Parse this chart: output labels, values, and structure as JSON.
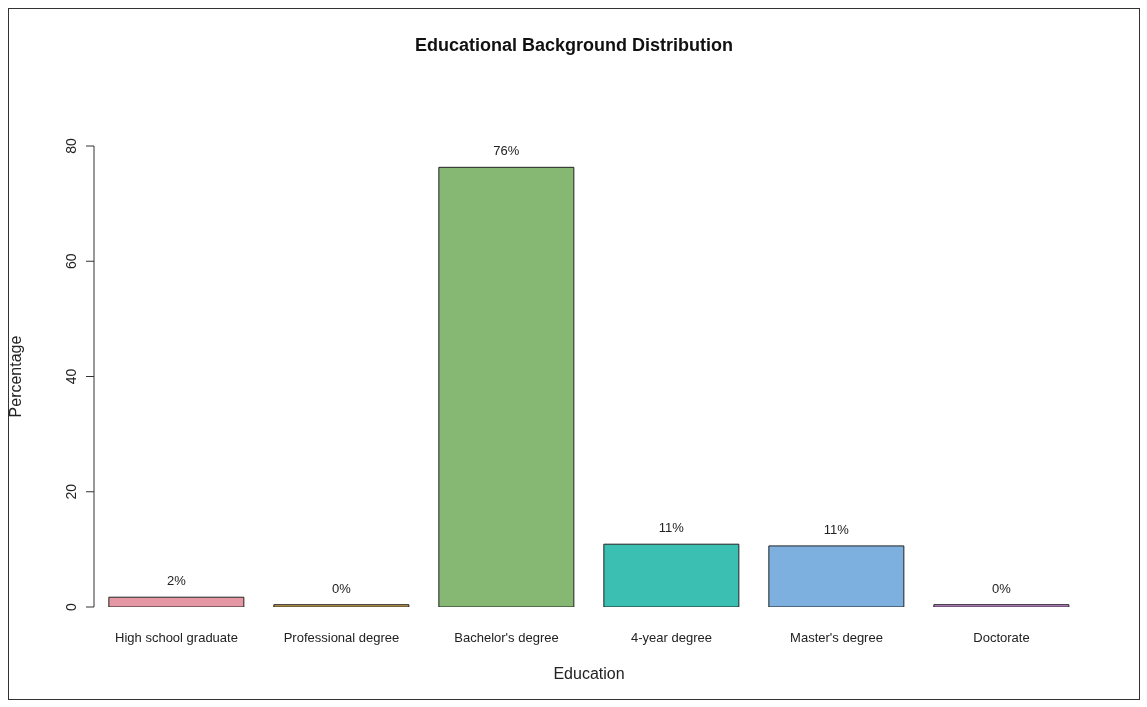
{
  "chart_data": {
    "type": "bar",
    "title": "Educational Background Distribution",
    "xlabel": "Education",
    "ylabel": "Percentage",
    "categories": [
      "High school graduate",
      "Professional degree",
      "Bachelor's degree",
      "4-year degree",
      "Master's degree",
      "Doctorate"
    ],
    "values": [
      1.7,
      0.4,
      76.3,
      10.9,
      10.6,
      0.4
    ],
    "colors": [
      "#e597a3",
      "#c9a24e",
      "#86b874",
      "#3bbfb2",
      "#7db0de",
      "#c98ad8"
    ],
    "value_labels": [
      "2%",
      "0%",
      "76%",
      "11%",
      "11%",
      "0%"
    ],
    "ylim": [
      0,
      80
    ],
    "yticks": [
      0,
      20,
      40,
      60,
      80
    ],
    "grid": false
  }
}
